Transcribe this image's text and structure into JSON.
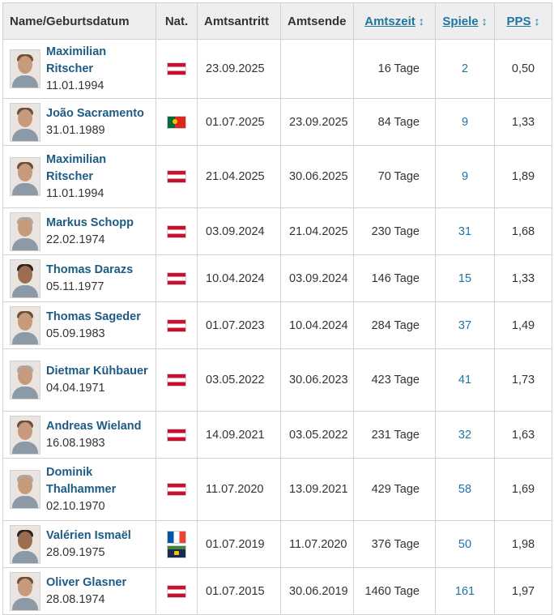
{
  "headers": {
    "name": "Name/Geburtsdatum",
    "nat": "Nat.",
    "start": "Amtsantritt",
    "end": "Amtsende",
    "tenure": "Amtszeit",
    "games": "Spiele",
    "pps": "PPS",
    "sort_arrow": "↕"
  },
  "rows": [
    {
      "name": "Maximilian Ritscher",
      "dob": "11.01.1994",
      "flags": [
        "flag-austria"
      ],
      "start": "23.09.2025",
      "end": "",
      "tenure": "16 Tage",
      "games": "2",
      "pps": "0,50"
    },
    {
      "name": "João Sacramento",
      "dob": "31.01.1989",
      "flags": [
        "flag-portugal"
      ],
      "start": "01.07.2025",
      "end": "23.09.2025",
      "tenure": "84 Tage",
      "games": "9",
      "pps": "1,33"
    },
    {
      "name": "Maximilian Ritscher",
      "dob": "11.01.1994",
      "flags": [
        "flag-austria"
      ],
      "start": "21.04.2025",
      "end": "30.06.2025",
      "tenure": "70 Tage",
      "games": "9",
      "pps": "1,89"
    },
    {
      "name": "Markus Schopp",
      "dob": "22.02.1974",
      "flags": [
        "flag-austria"
      ],
      "start": "03.09.2024",
      "end": "21.04.2025",
      "tenure": "230 Tage",
      "games": "31",
      "pps": "1,68"
    },
    {
      "name": "Thomas Darazs",
      "dob": "05.11.1977",
      "flags": [
        "flag-austria"
      ],
      "start": "10.04.2024",
      "end": "03.09.2024",
      "tenure": "146 Tage",
      "games": "15",
      "pps": "1,33"
    },
    {
      "name": "Thomas Sageder",
      "dob": "05.09.1983",
      "flags": [
        "flag-austria"
      ],
      "start": "01.07.2023",
      "end": "10.04.2024",
      "tenure": "284 Tage",
      "games": "37",
      "pps": "1,49"
    },
    {
      "name": "Dietmar Kühbauer",
      "dob": "04.04.1971",
      "flags": [
        "flag-austria"
      ],
      "start": "03.05.2022",
      "end": "30.06.2023",
      "tenure": "423 Tage",
      "games": "41",
      "pps": "1,73"
    },
    {
      "name": "Andreas Wieland",
      "dob": "16.08.1983",
      "flags": [
        "flag-austria"
      ],
      "start": "14.09.2021",
      "end": "03.05.2022",
      "tenure": "231 Tage",
      "games": "32",
      "pps": "1,63"
    },
    {
      "name": "Dominik Thalhammer",
      "dob": "02.10.1970",
      "flags": [
        "flag-austria"
      ],
      "start": "11.07.2020",
      "end": "13.09.2021",
      "tenure": "429 Tage",
      "games": "58",
      "pps": "1,69"
    },
    {
      "name": "Valérien Ismaël",
      "dob": "28.09.1975",
      "flags": [
        "flag-france",
        "flag-guadeloupe"
      ],
      "start": "01.07.2019",
      "end": "11.07.2020",
      "tenure": "376 Tage",
      "games": "50",
      "pps": "1,98"
    },
    {
      "name": "Oliver Glasner",
      "dob": "28.08.1974",
      "flags": [
        "flag-austria"
      ],
      "start": "01.07.2015",
      "end": "30.06.2019",
      "tenure": "1460 Tage",
      "games": "161",
      "pps": "1,97"
    }
  ]
}
